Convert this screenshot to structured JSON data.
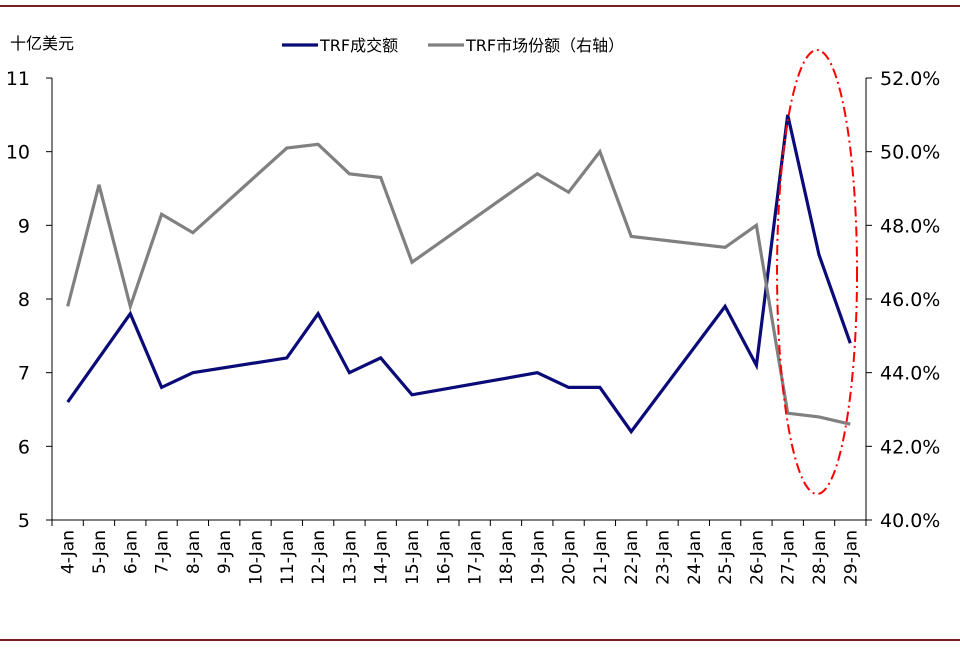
{
  "chart_data": {
    "type": "line",
    "title": "",
    "ylabel": "十亿美元",
    "xlabel": "",
    "categories": [
      "4-Jan",
      "5-Jan",
      "6-Jan",
      "7-Jan",
      "8-Jan",
      "9-Jan",
      "10-Jan",
      "11-Jan",
      "12-Jan",
      "13-Jan",
      "14-Jan",
      "15-Jan",
      "16-Jan",
      "17-Jan",
      "18-Jan",
      "19-Jan",
      "20-Jan",
      "21-Jan",
      "22-Jan",
      "23-Jan",
      "24-Jan",
      "25-Jan",
      "26-Jan",
      "27-Jan",
      "28-Jan",
      "29-Jan"
    ],
    "y_left": {
      "min": 5,
      "max": 11,
      "ticks": [
        "5",
        "6",
        "7",
        "8",
        "9",
        "10",
        "11"
      ]
    },
    "y_right": {
      "min": 40,
      "max": 52,
      "ticks": [
        "40.0%",
        "42.0%",
        "44.0%",
        "46.0%",
        "48.0%",
        "50.0%",
        "52.0%"
      ]
    },
    "series": [
      {
        "name": "TRF成交额",
        "axis": "left",
        "color": "#0a0a78",
        "points": [
          {
            "x": "4-Jan",
            "y": 6.6
          },
          {
            "x": "6-Jan",
            "y": 7.8
          },
          {
            "x": "7-Jan",
            "y": 6.8
          },
          {
            "x": "8-Jan",
            "y": 7.0
          },
          {
            "x": "11-Jan",
            "y": 7.2
          },
          {
            "x": "12-Jan",
            "y": 7.8
          },
          {
            "x": "13-Jan",
            "y": 7.0
          },
          {
            "x": "14-Jan",
            "y": 7.2
          },
          {
            "x": "15-Jan",
            "y": 6.7
          },
          {
            "x": "19-Jan",
            "y": 7.0
          },
          {
            "x": "20-Jan",
            "y": 6.8
          },
          {
            "x": "21-Jan",
            "y": 6.8
          },
          {
            "x": "22-Jan",
            "y": 6.2
          },
          {
            "x": "25-Jan",
            "y": 7.9
          },
          {
            "x": "26-Jan",
            "y": 7.1
          },
          {
            "x": "27-Jan",
            "y": 10.5
          },
          {
            "x": "28-Jan",
            "y": 8.6
          },
          {
            "x": "29-Jan",
            "y": 7.4
          }
        ]
      },
      {
        "name": "TRF市场份额（右轴）",
        "axis": "right",
        "color": "#808080",
        "points": [
          {
            "x": "4-Jan",
            "y": 45.8
          },
          {
            "x": "5-Jan",
            "y": 49.1
          },
          {
            "x": "6-Jan",
            "y": 45.8
          },
          {
            "x": "7-Jan",
            "y": 48.3
          },
          {
            "x": "8-Jan",
            "y": 47.8
          },
          {
            "x": "11-Jan",
            "y": 50.1
          },
          {
            "x": "12-Jan",
            "y": 50.2
          },
          {
            "x": "13-Jan",
            "y": 49.4
          },
          {
            "x": "14-Jan",
            "y": 49.3
          },
          {
            "x": "15-Jan",
            "y": 47.0
          },
          {
            "x": "19-Jan",
            "y": 49.4
          },
          {
            "x": "20-Jan",
            "y": 48.9
          },
          {
            "x": "21-Jan",
            "y": 50.0
          },
          {
            "x": "22-Jan",
            "y": 47.7
          },
          {
            "x": "25-Jan",
            "y": 47.4
          },
          {
            "x": "26-Jan",
            "y": 48.0
          },
          {
            "x": "27-Jan",
            "y": 42.9
          },
          {
            "x": "28-Jan",
            "y": 42.8
          },
          {
            "x": "29-Jan",
            "y": 42.6
          }
        ]
      }
    ],
    "legend": {
      "position": "top-center"
    },
    "annotation": {
      "type": "dashed-ellipse",
      "color": "#ff0000",
      "x_from": "27-Jan",
      "x_to": "29-Jan"
    },
    "grid": false
  }
}
